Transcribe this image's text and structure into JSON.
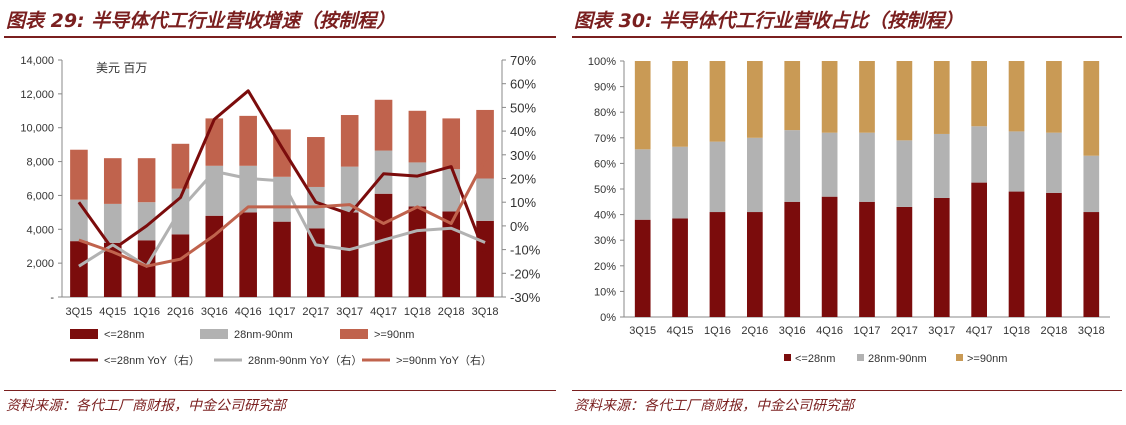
{
  "left_panel": {
    "figure_title": "图表 29:  半导体代工行业营收增速（按制程）",
    "source": "资料来源：各代工厂商财报，中金公司研究部"
  },
  "right_panel": {
    "figure_title": "图表 30:  半导体代工行业营收占比（按制程）",
    "source": "资料来源：各代工厂商财报，中金公司研究部"
  },
  "colors": {
    "lt28": "#7b0c0c",
    "mid": "#b2b2b2",
    "gt90": "#c0634d",
    "gt90_share": "#c99a55",
    "title": "#7a1f1f"
  },
  "chart_data": [
    {
      "type": "bar",
      "stacked": true,
      "title": "半导体代工行业营收增速（按制程）",
      "unit_label": "美元  百万",
      "categories": [
        "3Q15",
        "4Q15",
        "1Q16",
        "2Q16",
        "3Q16",
        "4Q16",
        "1Q17",
        "2Q17",
        "3Q17",
        "4Q17",
        "1Q18",
        "2Q18",
        "3Q18"
      ],
      "ylim": [
        0,
        14000
      ],
      "y_ticks": [
        "-",
        "2,000",
        "4,000",
        "6,000",
        "8,000",
        "10,000",
        "12,000",
        "14,000"
      ],
      "y2lim": [
        -30,
        70
      ],
      "y2_ticks": [
        "-30%",
        "-20%",
        "-10%",
        "0%",
        "10%",
        "20%",
        "30%",
        "40%",
        "50%",
        "60%",
        "70%"
      ],
      "series": [
        {
          "name": "<=28nm",
          "values": [
            3300,
            3200,
            3350,
            3700,
            4800,
            5000,
            4450,
            4050,
            5000,
            6100,
            5350,
            5050,
            4500
          ]
        },
        {
          "name": "28nm-90nm",
          "values": [
            2450,
            2300,
            2250,
            2700,
            2950,
            2750,
            2650,
            2450,
            2700,
            2550,
            2600,
            2500,
            2500
          ]
        },
        {
          "name": ">=90nm",
          "values": [
            2950,
            2700,
            2600,
            2650,
            2800,
            2950,
            2800,
            2950,
            3050,
            3000,
            3050,
            3000,
            4050
          ]
        }
      ],
      "line_series": [
        {
          "name": "<=28nm YoY（右）",
          "values": [
            10,
            -10,
            0,
            12,
            45,
            57,
            33,
            10,
            5,
            22,
            21,
            25,
            -12
          ]
        },
        {
          "name": "28nm-90nm YoY（右）",
          "values": [
            -17,
            -8,
            -17,
            7,
            23,
            20,
            19,
            -8,
            -10,
            -6,
            -2,
            -1,
            -7
          ]
        },
        {
          "name": ">=90nm YoY（右）",
          "values": [
            -6,
            -11,
            -17,
            -14,
            -4,
            8,
            8,
            8,
            9,
            1,
            8,
            1,
            28
          ]
        }
      ],
      "legend": [
        "<=28nm",
        "28nm-90nm",
        ">=90nm",
        "<=28nm YoY（右）",
        "28nm-90nm YoY（右）",
        ">=90nm YoY（右）"
      ]
    },
    {
      "type": "bar",
      "stacked": true,
      "percent": true,
      "title": "半导体代工行业营收占比（按制程）",
      "categories": [
        "3Q15",
        "4Q15",
        "1Q16",
        "2Q16",
        "3Q16",
        "4Q16",
        "1Q17",
        "2Q17",
        "3Q17",
        "4Q17",
        "1Q18",
        "2Q18",
        "3Q18"
      ],
      "ylim": [
        0,
        100
      ],
      "y_ticks": [
        "0%",
        "10%",
        "20%",
        "30%",
        "40%",
        "50%",
        "60%",
        "70%",
        "80%",
        "90%",
        "100%"
      ],
      "series": [
        {
          "name": "<=28nm",
          "values": [
            38,
            38.5,
            41,
            41,
            45,
            47,
            45,
            43,
            46.5,
            52.5,
            49,
            48.5,
            41
          ]
        },
        {
          "name": "28nm-90nm",
          "values": [
            27.5,
            28,
            27.5,
            29,
            28,
            25,
            27,
            26,
            25,
            22,
            23.5,
            23.5,
            22
          ]
        },
        {
          "name": ">=90nm",
          "values": [
            34.5,
            33.5,
            31.5,
            30,
            27,
            28,
            28,
            31,
            28.5,
            25.5,
            27.5,
            28,
            37
          ]
        }
      ],
      "legend": [
        "<=28nm",
        "28nm-90nm",
        ">=90nm"
      ]
    }
  ]
}
